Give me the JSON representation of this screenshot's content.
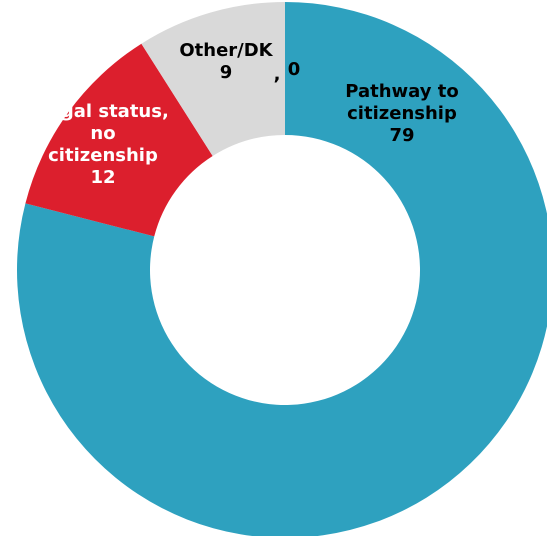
{
  "chart_data": {
    "type": "pie",
    "title": "",
    "slices": [
      {
        "label_lines": [
          "Pathway to",
          "citizenship"
        ],
        "value": 79,
        "value_text": "79",
        "color": "#2ea1bf",
        "label_color": "#000000"
      },
      {
        "label_lines": [
          "Legal status,",
          "no",
          "citizenship"
        ],
        "value": 12,
        "value_text": "12",
        "color": "#dc1f2d",
        "label_color": "#ffffff"
      },
      {
        "label_lines": [
          "Other/DK"
        ],
        "value": 9,
        "value_text": "9",
        "color": "#d9d9d9",
        "label_color": "#000000"
      },
      {
        "label_lines": [
          ","
        ],
        "value": 0,
        "value_text": "0",
        "color": "#ffffff",
        "label_color": "#000000"
      }
    ]
  }
}
